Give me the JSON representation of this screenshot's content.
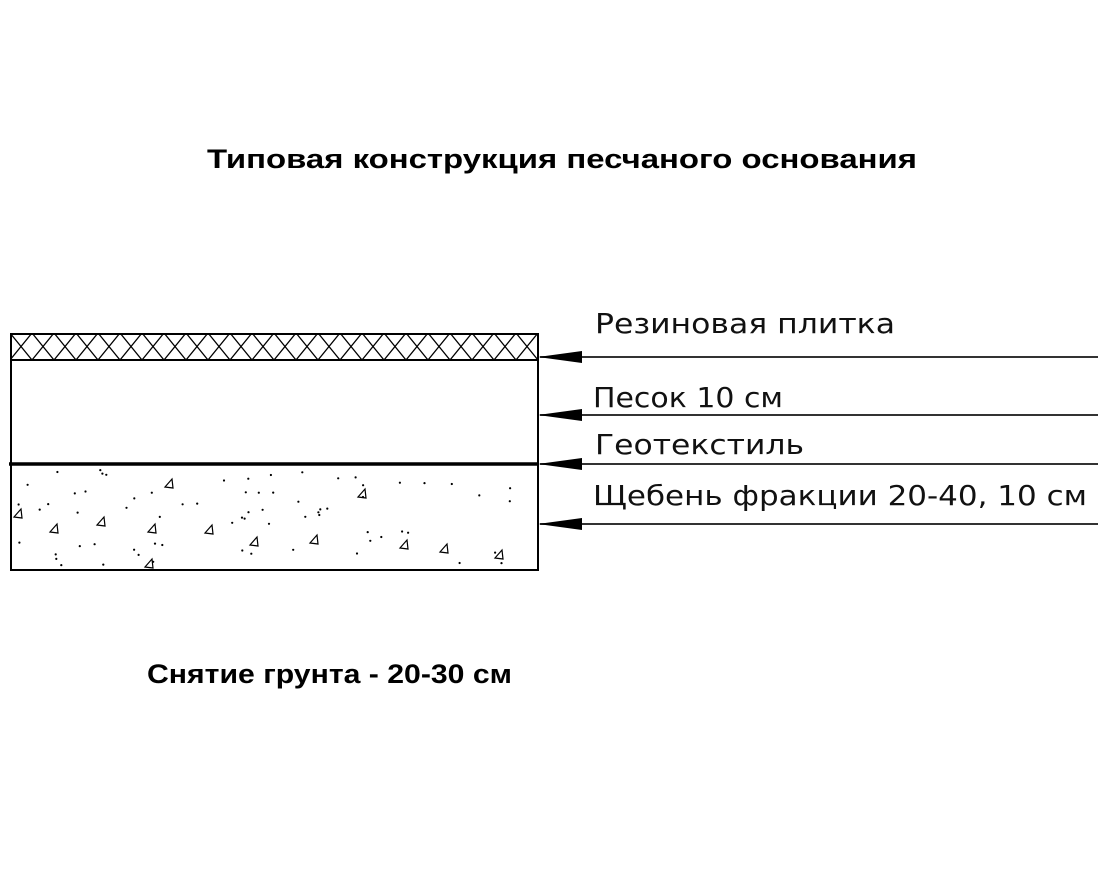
{
  "title": "Типовая конструкция песчаного основания",
  "footer_note": "Снятие грунта - 20-30 см",
  "layers": [
    {
      "label": "Резиновая плитка",
      "hatch": "crosshatch"
    },
    {
      "label": "Песок 10 см",
      "hatch": "none"
    },
    {
      "label": "Геотекстиль",
      "hatch": "line"
    },
    {
      "label": "Щебень фракции 20-40, 10 см",
      "hatch": "gravel"
    }
  ],
  "colors": {
    "line": "#000000",
    "background": "#ffffff"
  }
}
